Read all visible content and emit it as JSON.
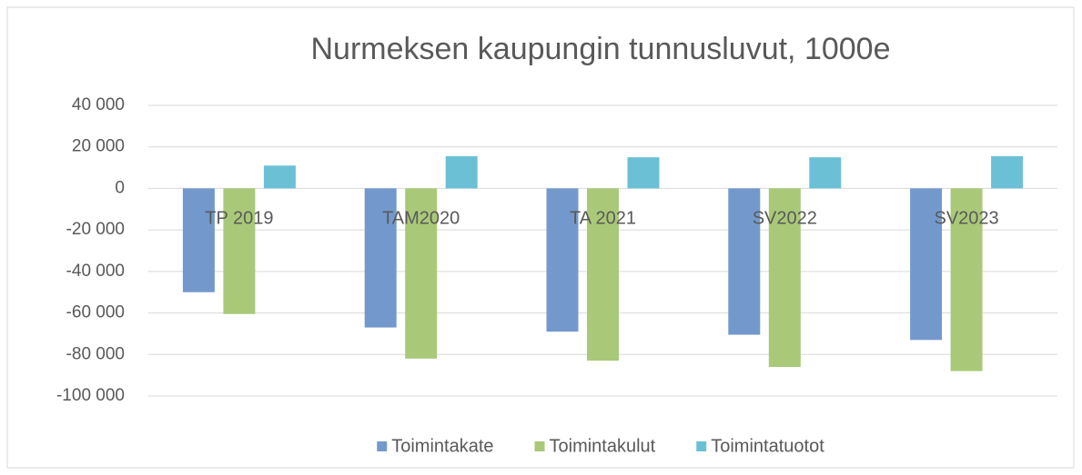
{
  "chart_data": {
    "type": "bar",
    "title": "Nurmeksen kaupungin tunnusluvut, 1000e",
    "categories": [
      "TP 2019",
      "TAM2020",
      "TA 2021",
      "SV2022",
      "SV2023"
    ],
    "series": [
      {
        "name": "Toimintakate",
        "color": "#7399cc",
        "values": [
          -50000,
          -67000,
          -69000,
          -70500,
          -73000
        ]
      },
      {
        "name": "Toimintakulut",
        "color": "#a9c978",
        "values": [
          -60500,
          -82000,
          -83000,
          -86000,
          -88000
        ]
      },
      {
        "name": "Toimintatuotot",
        "color": "#6cc0d6",
        "values": [
          11000,
          15500,
          15000,
          15000,
          15500
        ]
      }
    ],
    "ylim": [
      -100000,
      40000
    ],
    "yticks": [
      {
        "value": -100000,
        "label": "-100 000"
      },
      {
        "value": -80000,
        "label": "-80 000"
      },
      {
        "value": -60000,
        "label": "-60 000"
      },
      {
        "value": -40000,
        "label": "-40 000"
      },
      {
        "value": -20000,
        "label": "-20 000"
      },
      0,
      {
        "value": 20000,
        "label": "20 000"
      },
      {
        "value": 40000,
        "label": "40 000"
      }
    ],
    "grid": true,
    "legend": "bottom"
  }
}
